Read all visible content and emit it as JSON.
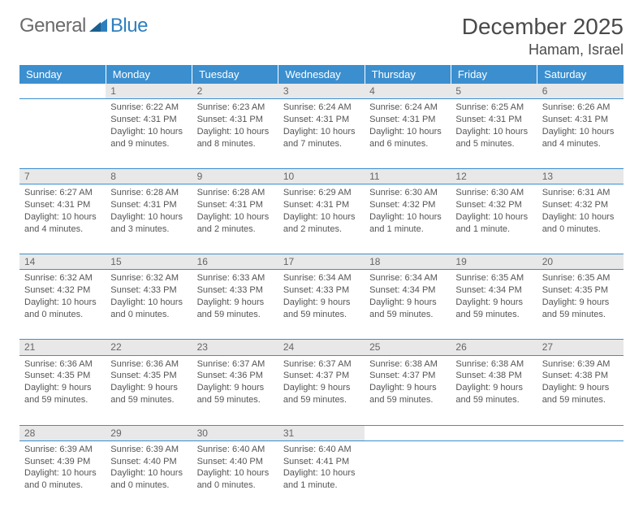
{
  "logo": {
    "text1": "General",
    "text2": "Blue"
  },
  "title": "December 2025",
  "location": "Hamam, Israel",
  "header_row": {
    "background": "#3b8fcf",
    "text_color": "#ffffff"
  },
  "daynum_row": {
    "background": "#e8e8e8",
    "border_color": "#3b8fcf"
  },
  "weekdays": [
    "Sunday",
    "Monday",
    "Tuesday",
    "Wednesday",
    "Thursday",
    "Friday",
    "Saturday"
  ],
  "weeks": [
    {
      "nums": [
        "",
        "1",
        "2",
        "3",
        "4",
        "5",
        "6"
      ],
      "cells": [
        {
          "sr": "",
          "ss": "",
          "dl": ""
        },
        {
          "sr": "Sunrise: 6:22 AM",
          "ss": "Sunset: 4:31 PM",
          "dl": "Daylight: 10 hours and 9 minutes."
        },
        {
          "sr": "Sunrise: 6:23 AM",
          "ss": "Sunset: 4:31 PM",
          "dl": "Daylight: 10 hours and 8 minutes."
        },
        {
          "sr": "Sunrise: 6:24 AM",
          "ss": "Sunset: 4:31 PM",
          "dl": "Daylight: 10 hours and 7 minutes."
        },
        {
          "sr": "Sunrise: 6:24 AM",
          "ss": "Sunset: 4:31 PM",
          "dl": "Daylight: 10 hours and 6 minutes."
        },
        {
          "sr": "Sunrise: 6:25 AM",
          "ss": "Sunset: 4:31 PM",
          "dl": "Daylight: 10 hours and 5 minutes."
        },
        {
          "sr": "Sunrise: 6:26 AM",
          "ss": "Sunset: 4:31 PM",
          "dl": "Daylight: 10 hours and 4 minutes."
        }
      ]
    },
    {
      "nums": [
        "7",
        "8",
        "9",
        "10",
        "11",
        "12",
        "13"
      ],
      "cells": [
        {
          "sr": "Sunrise: 6:27 AM",
          "ss": "Sunset: 4:31 PM",
          "dl": "Daylight: 10 hours and 4 minutes."
        },
        {
          "sr": "Sunrise: 6:28 AM",
          "ss": "Sunset: 4:31 PM",
          "dl": "Daylight: 10 hours and 3 minutes."
        },
        {
          "sr": "Sunrise: 6:28 AM",
          "ss": "Sunset: 4:31 PM",
          "dl": "Daylight: 10 hours and 2 minutes."
        },
        {
          "sr": "Sunrise: 6:29 AM",
          "ss": "Sunset: 4:31 PM",
          "dl": "Daylight: 10 hours and 2 minutes."
        },
        {
          "sr": "Sunrise: 6:30 AM",
          "ss": "Sunset: 4:32 PM",
          "dl": "Daylight: 10 hours and 1 minute."
        },
        {
          "sr": "Sunrise: 6:30 AM",
          "ss": "Sunset: 4:32 PM",
          "dl": "Daylight: 10 hours and 1 minute."
        },
        {
          "sr": "Sunrise: 6:31 AM",
          "ss": "Sunset: 4:32 PM",
          "dl": "Daylight: 10 hours and 0 minutes."
        }
      ]
    },
    {
      "nums": [
        "14",
        "15",
        "16",
        "17",
        "18",
        "19",
        "20"
      ],
      "cells": [
        {
          "sr": "Sunrise: 6:32 AM",
          "ss": "Sunset: 4:32 PM",
          "dl": "Daylight: 10 hours and 0 minutes."
        },
        {
          "sr": "Sunrise: 6:32 AM",
          "ss": "Sunset: 4:33 PM",
          "dl": "Daylight: 10 hours and 0 minutes."
        },
        {
          "sr": "Sunrise: 6:33 AM",
          "ss": "Sunset: 4:33 PM",
          "dl": "Daylight: 9 hours and 59 minutes."
        },
        {
          "sr": "Sunrise: 6:34 AM",
          "ss": "Sunset: 4:33 PM",
          "dl": "Daylight: 9 hours and 59 minutes."
        },
        {
          "sr": "Sunrise: 6:34 AM",
          "ss": "Sunset: 4:34 PM",
          "dl": "Daylight: 9 hours and 59 minutes."
        },
        {
          "sr": "Sunrise: 6:35 AM",
          "ss": "Sunset: 4:34 PM",
          "dl": "Daylight: 9 hours and 59 minutes."
        },
        {
          "sr": "Sunrise: 6:35 AM",
          "ss": "Sunset: 4:35 PM",
          "dl": "Daylight: 9 hours and 59 minutes."
        }
      ]
    },
    {
      "nums": [
        "21",
        "22",
        "23",
        "24",
        "25",
        "26",
        "27"
      ],
      "cells": [
        {
          "sr": "Sunrise: 6:36 AM",
          "ss": "Sunset: 4:35 PM",
          "dl": "Daylight: 9 hours and 59 minutes."
        },
        {
          "sr": "Sunrise: 6:36 AM",
          "ss": "Sunset: 4:35 PM",
          "dl": "Daylight: 9 hours and 59 minutes."
        },
        {
          "sr": "Sunrise: 6:37 AM",
          "ss": "Sunset: 4:36 PM",
          "dl": "Daylight: 9 hours and 59 minutes."
        },
        {
          "sr": "Sunrise: 6:37 AM",
          "ss": "Sunset: 4:37 PM",
          "dl": "Daylight: 9 hours and 59 minutes."
        },
        {
          "sr": "Sunrise: 6:38 AM",
          "ss": "Sunset: 4:37 PM",
          "dl": "Daylight: 9 hours and 59 minutes."
        },
        {
          "sr": "Sunrise: 6:38 AM",
          "ss": "Sunset: 4:38 PM",
          "dl": "Daylight: 9 hours and 59 minutes."
        },
        {
          "sr": "Sunrise: 6:39 AM",
          "ss": "Sunset: 4:38 PM",
          "dl": "Daylight: 9 hours and 59 minutes."
        }
      ]
    },
    {
      "nums": [
        "28",
        "29",
        "30",
        "31",
        "",
        "",
        ""
      ],
      "cells": [
        {
          "sr": "Sunrise: 6:39 AM",
          "ss": "Sunset: 4:39 PM",
          "dl": "Daylight: 10 hours and 0 minutes."
        },
        {
          "sr": "Sunrise: 6:39 AM",
          "ss": "Sunset: 4:40 PM",
          "dl": "Daylight: 10 hours and 0 minutes."
        },
        {
          "sr": "Sunrise: 6:40 AM",
          "ss": "Sunset: 4:40 PM",
          "dl": "Daylight: 10 hours and 0 minutes."
        },
        {
          "sr": "Sunrise: 6:40 AM",
          "ss": "Sunset: 4:41 PM",
          "dl": "Daylight: 10 hours and 1 minute."
        },
        {
          "sr": "",
          "ss": "",
          "dl": ""
        },
        {
          "sr": "",
          "ss": "",
          "dl": ""
        },
        {
          "sr": "",
          "ss": "",
          "dl": ""
        }
      ]
    }
  ]
}
